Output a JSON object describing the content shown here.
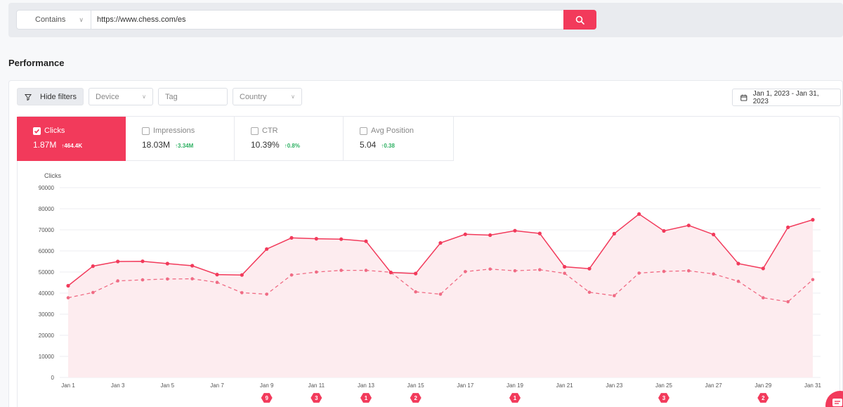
{
  "search": {
    "mode": "Contains",
    "query": "https://www.chess.com/es"
  },
  "page": {
    "title": "Performance"
  },
  "filters": {
    "hide_label": "Hide filters",
    "device_placeholder": "Device",
    "tag_placeholder": "Tag",
    "country_placeholder": "Country",
    "date_range": "Jan 1, 2023 - Jan 31, 2023"
  },
  "metrics": [
    {
      "label": "Clicks",
      "value": "1.87M",
      "delta": "464.4K",
      "checked": true
    },
    {
      "label": "Impressions",
      "value": "18.03M",
      "delta": "3.34M",
      "checked": false
    },
    {
      "label": "CTR",
      "value": "10.39%",
      "delta": "0.8%",
      "checked": false
    },
    {
      "label": "Avg Position",
      "value": "5.04",
      "delta": "0.38",
      "checked": false
    }
  ],
  "colors": {
    "accent": "#f23a5b",
    "positive": "#2fb163"
  },
  "chart_data": {
    "type": "line",
    "ylabel": "Clicks",
    "ylim": [
      0,
      90000
    ],
    "yticks": [
      0,
      10000,
      20000,
      30000,
      40000,
      50000,
      60000,
      70000,
      80000,
      90000
    ],
    "x": [
      "Jan 1",
      "Jan 2",
      "Jan 3",
      "Jan 4",
      "Jan 5",
      "Jan 6",
      "Jan 7",
      "Jan 8",
      "Jan 9",
      "Jan 10",
      "Jan 11",
      "Jan 12",
      "Jan 13",
      "Jan 14",
      "Jan 15",
      "Jan 16",
      "Jan 17",
      "Jan 18",
      "Jan 19",
      "Jan 20",
      "Jan 21",
      "Jan 22",
      "Jan 23",
      "Jan 24",
      "Jan 25",
      "Jan 26",
      "Jan 27",
      "Jan 28",
      "Jan 29",
      "Jan 30",
      "Jan 31"
    ],
    "xtick_labels": [
      "Jan 1",
      "Jan 3",
      "Jan 5",
      "Jan 7",
      "Jan 9",
      "Jan 11",
      "Jan 13",
      "Jan 15",
      "Jan 17",
      "Jan 19",
      "Jan 21",
      "Jan 23",
      "Jan 25",
      "Jan 27",
      "Jan 29",
      "Jan 31"
    ],
    "series": [
      {
        "style": "solid",
        "values": [
          43500,
          52800,
          55000,
          55100,
          54000,
          53000,
          48800,
          48600,
          60900,
          66200,
          65800,
          65600,
          64600,
          49800,
          49300,
          63800,
          67900,
          67500,
          69600,
          68300,
          52500,
          51600,
          68200,
          77500,
          69500,
          72100,
          67800,
          54000,
          51700,
          71200,
          74800
        ]
      },
      {
        "style": "dashed",
        "values": [
          37800,
          40300,
          45800,
          46300,
          46700,
          46800,
          45100,
          40200,
          39500,
          48600,
          50000,
          50800,
          50800,
          49900,
          40600,
          39500,
          50200,
          51400,
          50600,
          51100,
          49400,
          40400,
          38800,
          49500,
          50300,
          50600,
          49100,
          45600,
          37800,
          35900,
          46400
        ]
      }
    ],
    "annotations": [
      {
        "x": "Jan 9",
        "count": "9"
      },
      {
        "x": "Jan 11",
        "count": "3"
      },
      {
        "x": "Jan 13",
        "count": "1"
      },
      {
        "x": "Jan 15",
        "count": "2"
      },
      {
        "x": "Jan 19",
        "count": "1"
      },
      {
        "x": "Jan 25",
        "count": "3"
      },
      {
        "x": "Jan 29",
        "count": "2"
      }
    ]
  }
}
